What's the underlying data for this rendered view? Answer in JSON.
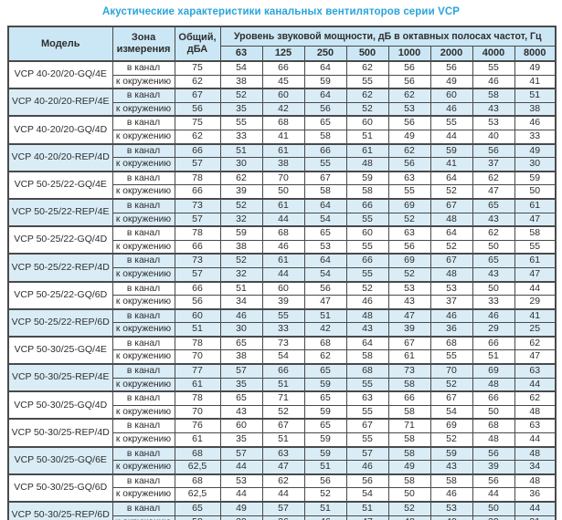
{
  "title": "Акустические характеристики канальных вентиляторов  серии VCP",
  "colors": {
    "title_accent": "#29a4da",
    "header_bg": "#cbe7f5",
    "highlight_row_bg": "#daedf7",
    "border": "#4a4a4a"
  },
  "table": {
    "headers": {
      "model": "Модель",
      "zone": "Зона измерения",
      "total": "Общий, дБА",
      "level_span": "Уровень звуковой мощности, дБ в октавных полосах частот, Гц",
      "frequencies": [
        "63",
        "125",
        "250",
        "500",
        "1000",
        "2000",
        "4000",
        "8000"
      ]
    },
    "groups": [
      {
        "model": "VCP 40-20/20-GQ/4E",
        "highlight": false,
        "rows": [
          {
            "zone": "в канал",
            "total": "75",
            "values": [
              "54",
              "66",
              "64",
              "62",
              "56",
              "56",
              "55",
              "49"
            ]
          },
          {
            "zone": "к окружению",
            "total": "62",
            "values": [
              "38",
              "45",
              "59",
              "55",
              "56",
              "49",
              "46",
              "41"
            ]
          }
        ]
      },
      {
        "model": "VCP 40-20/20-REP/4E",
        "highlight": true,
        "rows": [
          {
            "zone": "в канал",
            "total": "67",
            "values": [
              "52",
              "60",
              "64",
              "62",
              "62",
              "60",
              "58",
              "51"
            ]
          },
          {
            "zone": "к окружению",
            "total": "56",
            "values": [
              "35",
              "42",
              "56",
              "52",
              "53",
              "46",
              "43",
              "38"
            ]
          }
        ]
      },
      {
        "model": "VCP 40-20/20-GQ/4D",
        "highlight": false,
        "rows": [
          {
            "zone": "в канал",
            "total": "75",
            "values": [
              "55",
              "68",
              "65",
              "60",
              "56",
              "55",
              "53",
              "46"
            ]
          },
          {
            "zone": "к окружению",
            "total": "62",
            "values": [
              "33",
              "41",
              "58",
              "51",
              "49",
              "44",
              "40",
              "33"
            ]
          }
        ]
      },
      {
        "model": "VCP 40-20/20-REP/4D",
        "highlight": true,
        "rows": [
          {
            "zone": "в канал",
            "total": "66",
            "values": [
              "51",
              "61",
              "66",
              "61",
              "62",
              "59",
              "56",
              "49"
            ]
          },
          {
            "zone": "к окружению",
            "total": "57",
            "values": [
              "30",
              "38",
              "55",
              "48",
              "56",
              "41",
              "37",
              "30"
            ]
          }
        ]
      },
      {
        "model": "VCP 50-25/22-GQ/4E",
        "highlight": false,
        "rows": [
          {
            "zone": "в канал",
            "total": "78",
            "values": [
              "62",
              "70",
              "67",
              "59",
              "63",
              "64",
              "62",
              "59"
            ]
          },
          {
            "zone": "к окружению",
            "total": "66",
            "values": [
              "39",
              "50",
              "58",
              "58",
              "55",
              "52",
              "47",
              "50"
            ]
          }
        ]
      },
      {
        "model": "VCP 50-25/22-REP/4E",
        "highlight": true,
        "rows": [
          {
            "zone": "в канал",
            "total": "73",
            "values": [
              "52",
              "61",
              "64",
              "66",
              "69",
              "67",
              "65",
              "61"
            ]
          },
          {
            "zone": "к окружению",
            "total": "57",
            "values": [
              "32",
              "44",
              "54",
              "55",
              "52",
              "48",
              "43",
              "47"
            ]
          }
        ]
      },
      {
        "model": "VCP 50-25/22-GQ/4D",
        "highlight": false,
        "rows": [
          {
            "zone": "в канал",
            "total": "78",
            "values": [
              "59",
              "68",
              "65",
              "60",
              "63",
              "64",
              "62",
              "58"
            ]
          },
          {
            "zone": "к окружению",
            "total": "66",
            "values": [
              "38",
              "46",
              "53",
              "55",
              "56",
              "52",
              "50",
              "55"
            ]
          }
        ]
      },
      {
        "model": "VCP 50-25/22-REP/4D",
        "highlight": true,
        "rows": [
          {
            "zone": "в канал",
            "total": "73",
            "values": [
              "52",
              "61",
              "64",
              "66",
              "69",
              "67",
              "65",
              "61"
            ]
          },
          {
            "zone": "к окружению",
            "total": "57",
            "values": [
              "32",
              "44",
              "54",
              "55",
              "52",
              "48",
              "43",
              "47"
            ]
          }
        ]
      },
      {
        "model": "VCP 50-25/22-GQ/6D",
        "highlight": false,
        "rows": [
          {
            "zone": "в канал",
            "total": "66",
            "values": [
              "51",
              "60",
              "56",
              "52",
              "53",
              "53",
              "50",
              "44"
            ]
          },
          {
            "zone": "к окружению",
            "total": "56",
            "values": [
              "34",
              "39",
              "47",
              "46",
              "43",
              "37",
              "33",
              "29"
            ]
          }
        ]
      },
      {
        "model": "VCP 50-25/22-REP/6D",
        "highlight": true,
        "rows": [
          {
            "zone": "в канал",
            "total": "60",
            "values": [
              "46",
              "55",
              "51",
              "48",
              "47",
              "46",
              "46",
              "41"
            ]
          },
          {
            "zone": "к окружению",
            "total": "51",
            "values": [
              "30",
              "33",
              "42",
              "43",
              "39",
              "36",
              "29",
              "25"
            ]
          }
        ]
      },
      {
        "model": "VCP 50-30/25-GQ/4E",
        "highlight": false,
        "rows": [
          {
            "zone": "в канал",
            "total": "78",
            "values": [
              "65",
              "73",
              "68",
              "64",
              "67",
              "68",
              "66",
              "62"
            ]
          },
          {
            "zone": "к окружению",
            "total": "70",
            "values": [
              "38",
              "54",
              "62",
              "58",
              "61",
              "55",
              "51",
              "47"
            ]
          }
        ]
      },
      {
        "model": "VCP 50-30/25-REP/4E",
        "highlight": true,
        "rows": [
          {
            "zone": "в канал",
            "total": "77",
            "values": [
              "57",
              "66",
              "65",
              "68",
              "73",
              "70",
              "69",
              "63"
            ]
          },
          {
            "zone": "к окружению",
            "total": "61",
            "values": [
              "35",
              "51",
              "59",
              "55",
              "58",
              "52",
              "48",
              "44"
            ]
          }
        ]
      },
      {
        "model": "VCP 50-30/25-GQ/4D",
        "highlight": false,
        "rows": [
          {
            "zone": "в канал",
            "total": "78",
            "values": [
              "65",
              "71",
              "65",
              "63",
              "66",
              "67",
              "66",
              "62"
            ]
          },
          {
            "zone": "к окружению",
            "total": "70",
            "values": [
              "43",
              "52",
              "59",
              "55",
              "58",
              "54",
              "50",
              "48"
            ]
          }
        ]
      },
      {
        "model": "VCP 50-30/25-REP/4D",
        "highlight": false,
        "rows": [
          {
            "zone": "в канал",
            "total": "76",
            "values": [
              "60",
              "67",
              "65",
              "67",
              "71",
              "69",
              "68",
              "63"
            ]
          },
          {
            "zone": "к окружению",
            "total": "61",
            "values": [
              "35",
              "51",
              "59",
              "55",
              "58",
              "52",
              "48",
              "44"
            ]
          }
        ]
      },
      {
        "model": "VCP 50-30/25-GQ/6E",
        "highlight": true,
        "rows": [
          {
            "zone": "в канал",
            "total": "68",
            "values": [
              "57",
              "63",
              "59",
              "57",
              "58",
              "59",
              "56",
              "48"
            ]
          },
          {
            "zone": "к окружению",
            "total": "62,5",
            "values": [
              "44",
              "47",
              "51",
              "46",
              "49",
              "43",
              "39",
              "34"
            ]
          }
        ]
      },
      {
        "model": "VCP 50-30/25-GQ/6D",
        "highlight": false,
        "rows": [
          {
            "zone": "в канал",
            "total": "68",
            "values": [
              "53",
              "62",
              "56",
              "56",
              "58",
              "58",
              "56",
              "48"
            ]
          },
          {
            "zone": "к окружению",
            "total": "62,5",
            "values": [
              "44",
              "44",
              "52",
              "54",
              "50",
              "46",
              "44",
              "36"
            ]
          }
        ]
      },
      {
        "model": "VCP 50-30/25-REP/6D",
        "highlight": true,
        "rows": [
          {
            "zone": "в канал",
            "total": "65",
            "values": [
              "49",
              "57",
              "51",
              "51",
              "52",
              "53",
              "50",
              "44"
            ]
          },
          {
            "zone": "к окружению",
            "total": "58",
            "values": [
              "39",
              "36",
              "46",
              "47",
              "48",
              "40",
              "39",
              "31"
            ]
          }
        ]
      }
    ]
  }
}
